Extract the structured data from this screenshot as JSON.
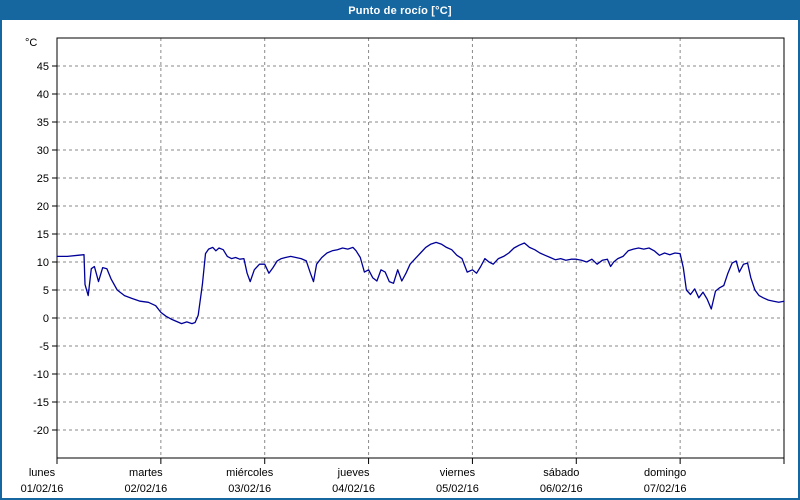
{
  "window": {
    "title": "Punto de rocío [°C]"
  },
  "colors": {
    "titlebar_bg": "#1667a0",
    "titlebar_text": "#ffffff",
    "page_border": "#1667a0",
    "plot_border": "#000000",
    "grid": "#8a8a8a",
    "axis_text": "#000000",
    "line": "#000099",
    "background": "#ffffff"
  },
  "chart_data": {
    "type": "line",
    "title": "Punto de rocío [°C]",
    "ylabel": "°C",
    "ylim": [
      -25,
      50
    ],
    "xlim": [
      0,
      7
    ],
    "ytick_min": -20,
    "ytick_max": 45,
    "ytick_step": 5,
    "grid": true,
    "legend": "none",
    "categories": [
      {
        "name": "lunes",
        "date": "01/02/16"
      },
      {
        "name": "martes",
        "date": "02/02/16"
      },
      {
        "name": "miércoles",
        "date": "03/02/16"
      },
      {
        "name": "jueves",
        "date": "04/02/16"
      },
      {
        "name": "viernes",
        "date": "05/02/16"
      },
      {
        "name": "sábado",
        "date": "06/02/16"
      },
      {
        "name": "domingo",
        "date": "07/02/16"
      }
    ],
    "series_name": "Punto de rocío",
    "points": [
      [
        0.0,
        11.0
      ],
      [
        0.1,
        11.0
      ],
      [
        0.2,
        11.2
      ],
      [
        0.26,
        11.3
      ],
      [
        0.27,
        6.0
      ],
      [
        0.3,
        4.0
      ],
      [
        0.33,
        8.8
      ],
      [
        0.36,
        9.2
      ],
      [
        0.4,
        6.5
      ],
      [
        0.44,
        9.0
      ],
      [
        0.48,
        8.8
      ],
      [
        0.52,
        7.0
      ],
      [
        0.58,
        5.0
      ],
      [
        0.65,
        4.0
      ],
      [
        0.72,
        3.5
      ],
      [
        0.8,
        3.0
      ],
      [
        0.88,
        2.8
      ],
      [
        0.95,
        2.2
      ],
      [
        1.0,
        1.0
      ],
      [
        1.05,
        0.3
      ],
      [
        1.1,
        -0.2
      ],
      [
        1.15,
        -0.6
      ],
      [
        1.2,
        -1.0
      ],
      [
        1.25,
        -0.7
      ],
      [
        1.3,
        -1.0
      ],
      [
        1.33,
        -0.8
      ],
      [
        1.36,
        0.5
      ],
      [
        1.4,
        6.0
      ],
      [
        1.43,
        11.5
      ],
      [
        1.46,
        12.3
      ],
      [
        1.5,
        12.6
      ],
      [
        1.53,
        12.0
      ],
      [
        1.56,
        12.5
      ],
      [
        1.6,
        12.2
      ],
      [
        1.64,
        11.0
      ],
      [
        1.68,
        10.6
      ],
      [
        1.72,
        10.8
      ],
      [
        1.76,
        10.5
      ],
      [
        1.8,
        10.6
      ],
      [
        1.83,
        8.0
      ],
      [
        1.86,
        6.5
      ],
      [
        1.9,
        8.6
      ],
      [
        1.95,
        9.6
      ],
      [
        2.0,
        9.6
      ],
      [
        2.04,
        8.0
      ],
      [
        2.08,
        9.0
      ],
      [
        2.12,
        10.2
      ],
      [
        2.16,
        10.6
      ],
      [
        2.2,
        10.8
      ],
      [
        2.25,
        11.0
      ],
      [
        2.3,
        10.8
      ],
      [
        2.35,
        10.6
      ],
      [
        2.4,
        10.2
      ],
      [
        2.44,
        8.0
      ],
      [
        2.47,
        6.5
      ],
      [
        2.5,
        9.6
      ],
      [
        2.55,
        10.8
      ],
      [
        2.6,
        11.6
      ],
      [
        2.65,
        12.0
      ],
      [
        2.7,
        12.2
      ],
      [
        2.75,
        12.5
      ],
      [
        2.8,
        12.3
      ],
      [
        2.85,
        12.6
      ],
      [
        2.88,
        12.0
      ],
      [
        2.92,
        10.8
      ],
      [
        2.96,
        8.2
      ],
      [
        3.0,
        8.6
      ],
      [
        3.04,
        7.2
      ],
      [
        3.08,
        6.6
      ],
      [
        3.12,
        8.6
      ],
      [
        3.16,
        8.2
      ],
      [
        3.2,
        6.5
      ],
      [
        3.24,
        6.2
      ],
      [
        3.28,
        8.6
      ],
      [
        3.32,
        6.6
      ],
      [
        3.36,
        8.0
      ],
      [
        3.4,
        9.6
      ],
      [
        3.45,
        10.6
      ],
      [
        3.5,
        11.6
      ],
      [
        3.55,
        12.6
      ],
      [
        3.6,
        13.2
      ],
      [
        3.65,
        13.5
      ],
      [
        3.7,
        13.2
      ],
      [
        3.75,
        12.6
      ],
      [
        3.8,
        12.2
      ],
      [
        3.85,
        11.2
      ],
      [
        3.9,
        10.6
      ],
      [
        3.95,
        8.2
      ],
      [
        4.0,
        8.6
      ],
      [
        4.04,
        8.0
      ],
      [
        4.08,
        9.2
      ],
      [
        4.12,
        10.6
      ],
      [
        4.16,
        10.0
      ],
      [
        4.2,
        9.6
      ],
      [
        4.25,
        10.6
      ],
      [
        4.3,
        11.0
      ],
      [
        4.35,
        11.6
      ],
      [
        4.4,
        12.5
      ],
      [
        4.45,
        13.0
      ],
      [
        4.5,
        13.4
      ],
      [
        4.55,
        12.6
      ],
      [
        4.6,
        12.2
      ],
      [
        4.65,
        11.6
      ],
      [
        4.7,
        11.2
      ],
      [
        4.75,
        10.8
      ],
      [
        4.8,
        10.4
      ],
      [
        4.85,
        10.6
      ],
      [
        4.9,
        10.3
      ],
      [
        4.95,
        10.5
      ],
      [
        5.0,
        10.5
      ],
      [
        5.05,
        10.3
      ],
      [
        5.1,
        10.0
      ],
      [
        5.15,
        10.5
      ],
      [
        5.2,
        9.6
      ],
      [
        5.25,
        10.3
      ],
      [
        5.3,
        10.5
      ],
      [
        5.33,
        9.2
      ],
      [
        5.36,
        10.0
      ],
      [
        5.4,
        10.6
      ],
      [
        5.45,
        11.0
      ],
      [
        5.5,
        12.0
      ],
      [
        5.55,
        12.3
      ],
      [
        5.6,
        12.5
      ],
      [
        5.65,
        12.3
      ],
      [
        5.7,
        12.5
      ],
      [
        5.75,
        12.0
      ],
      [
        5.8,
        11.2
      ],
      [
        5.85,
        11.6
      ],
      [
        5.9,
        11.3
      ],
      [
        5.95,
        11.6
      ],
      [
        6.0,
        11.5
      ],
      [
        6.03,
        9.0
      ],
      [
        6.06,
        5.0
      ],
      [
        6.1,
        4.2
      ],
      [
        6.14,
        5.2
      ],
      [
        6.18,
        3.6
      ],
      [
        6.22,
        4.6
      ],
      [
        6.26,
        3.4
      ],
      [
        6.3,
        1.6
      ],
      [
        6.34,
        4.8
      ],
      [
        6.38,
        5.4
      ],
      [
        6.42,
        5.8
      ],
      [
        6.46,
        8.0
      ],
      [
        6.5,
        9.8
      ],
      [
        6.54,
        10.2
      ],
      [
        6.57,
        8.2
      ],
      [
        6.61,
        9.6
      ],
      [
        6.65,
        9.8
      ],
      [
        6.68,
        7.2
      ],
      [
        6.72,
        5.0
      ],
      [
        6.76,
        4.0
      ],
      [
        6.8,
        3.6
      ],
      [
        6.85,
        3.2
      ],
      [
        6.9,
        3.0
      ],
      [
        6.95,
        2.8
      ],
      [
        7.0,
        3.0
      ]
    ]
  }
}
